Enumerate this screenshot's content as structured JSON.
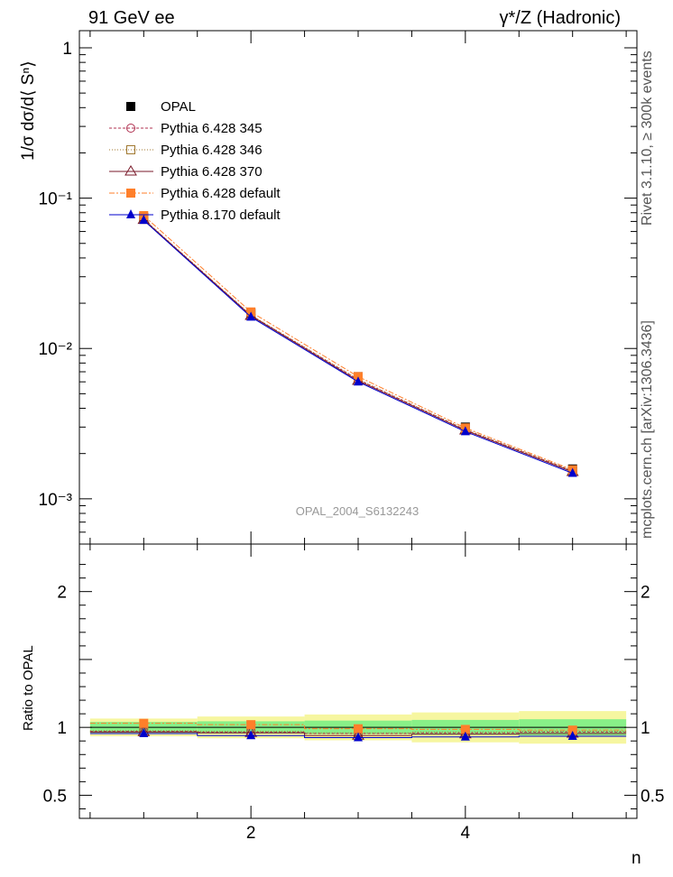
{
  "header": {
    "left": "91 GeV ee",
    "right": "γ*/Z (Hadronic)"
  },
  "side_labels": {
    "rivet": "Rivet 3.1.10, ≥ 300k events",
    "mcplots": "mcplots.cern.ch [arXiv:1306.3436]"
  },
  "watermark": "OPAL_2004_S6132243",
  "chart_data": [
    {
      "type": "line",
      "ylabel": "1/σ dσ/d⟨ Sⁿ⟩",
      "yscale": "log",
      "xlim": [
        0.4,
        5.6
      ],
      "ylim": [
        0.0005,
        1.3
      ],
      "y_tick_labels": [
        "10⁻³",
        "10⁻²",
        "10⁻¹",
        "1"
      ],
      "y_tick_values": [
        0.001,
        0.01,
        0.1,
        1
      ],
      "x": [
        1,
        2,
        3,
        4,
        5
      ],
      "series": [
        {
          "name": "OPAL",
          "color": "#000000",
          "marker": "square",
          "values": [
            0.0745,
            0.0172,
            0.0065,
            0.003,
            0.00158
          ]
        },
        {
          "name": "Pythia 6.428 345",
          "color": "#b03050",
          "marker": "circle-open",
          "dash": "3,2",
          "values": [
            0.0723,
            0.0166,
            0.0062,
            0.00288,
            0.00153
          ]
        },
        {
          "name": "Pythia 6.428 346",
          "color": "#a07830",
          "marker": "square-open",
          "dash": "1,2",
          "values": [
            0.0727,
            0.0167,
            0.00625,
            0.0029,
            0.00154
          ]
        },
        {
          "name": "Pythia 6.428 370",
          "color": "#7a1a2a",
          "marker": "triangle-open",
          "dash": "",
          "values": [
            0.0718,
            0.0165,
            0.0061,
            0.00285,
            0.00151
          ]
        },
        {
          "name": "Pythia 6.428 default",
          "color": "#ff7f2a",
          "marker": "square",
          "dash": "6,2,2,2",
          "values": [
            0.0765,
            0.0175,
            0.0065,
            0.00296,
            0.00156
          ]
        },
        {
          "name": "Pythia 8.170 default",
          "color": "#0000cc",
          "marker": "triangle",
          "dash": "",
          "values": [
            0.0712,
            0.0162,
            0.006,
            0.0028,
            0.00148
          ]
        }
      ],
      "legend_position": "top-left"
    },
    {
      "type": "line",
      "xlabel": "n",
      "ylabel": "Ratio to OPAL",
      "ylim": [
        0.33,
        2.35
      ],
      "y_tick_labels": [
        "0.5",
        "1",
        "2"
      ],
      "y_tick_values": [
        0.5,
        1,
        2
      ],
      "x_tick_labels": [
        "2",
        "4"
      ],
      "x_tick_values": [
        2,
        4
      ],
      "x": [
        1,
        2,
        3,
        4,
        5
      ],
      "bin_edges": [
        0.5,
        1.5,
        2.5,
        3.5,
        4.5,
        5.5
      ],
      "band_inner": [
        0.04,
        0.045,
        0.05,
        0.055,
        0.06
      ],
      "band_outer": [
        0.065,
        0.08,
        0.095,
        0.11,
        0.12
      ],
      "band_colors": {
        "inner": "#88f088",
        "outer": "#f6f6a0"
      },
      "series": [
        {
          "name": "Pythia 6.428 345",
          "values": [
            0.97,
            0.965,
            0.955,
            0.96,
            0.965
          ]
        },
        {
          "name": "Pythia 6.428 346",
          "values": [
            0.975,
            0.97,
            0.96,
            0.965,
            0.97
          ]
        },
        {
          "name": "Pythia 6.428 370",
          "values": [
            0.965,
            0.96,
            0.94,
            0.95,
            0.955
          ]
        },
        {
          "name": "Pythia 6.428 default",
          "values": [
            1.03,
            1.02,
            0.99,
            0.985,
            0.98
          ]
        },
        {
          "name": "Pythia 8.170 default",
          "values": [
            0.955,
            0.94,
            0.925,
            0.93,
            0.935
          ]
        }
      ]
    }
  ]
}
